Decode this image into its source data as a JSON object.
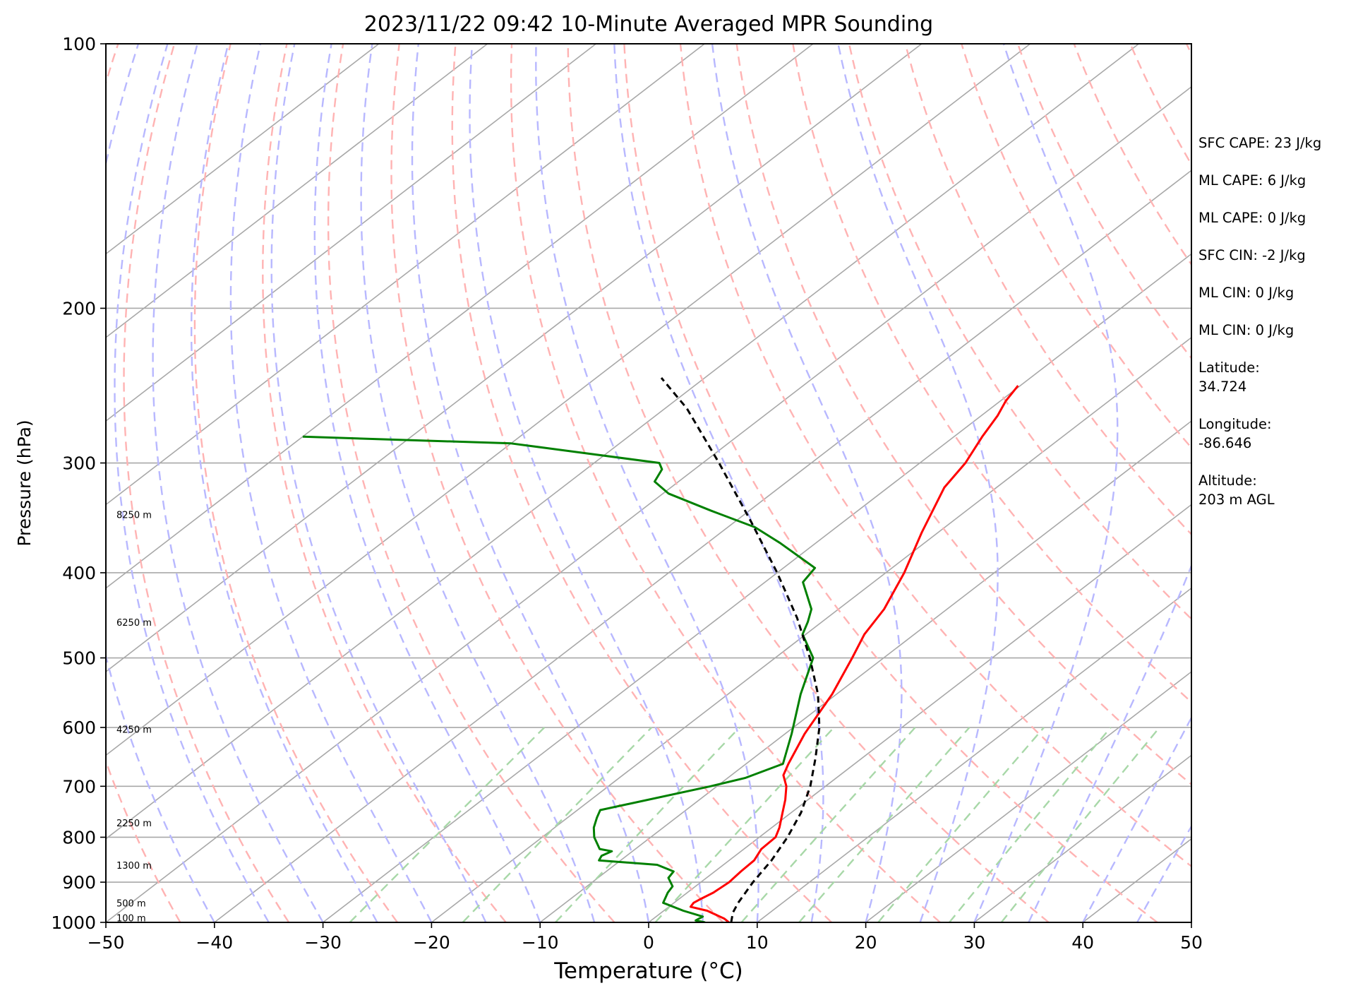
{
  "chart_data": {
    "type": "line",
    "title": "2023/11/22 09:42 10-Minute Averaged MPR Sounding",
    "xlabel": "Temperature (°C)",
    "ylabel": "Pressure (hPa)",
    "xlim": [
      -50,
      50
    ],
    "ylim": [
      1000,
      100
    ],
    "y_scale": "log",
    "skew": "skew-T log-P",
    "x_ticks": [
      "−50",
      "−40",
      "−30",
      "−20",
      "−10",
      "0",
      "10",
      "20",
      "30",
      "40",
      "50"
    ],
    "y_ticks": [
      "100",
      "200",
      "300",
      "400",
      "500",
      "600",
      "700",
      "800",
      "900",
      "1000"
    ],
    "grid": true,
    "series": [
      {
        "role": "temperature",
        "color": "#ff0000",
        "points": [
          [
            7.4,
            1000
          ],
          [
            6.5,
            990
          ],
          [
            4,
            970
          ],
          [
            2,
            960
          ],
          [
            1.8,
            950
          ],
          [
            2,
            940
          ],
          [
            2.4,
            925
          ],
          [
            2.6,
            900
          ],
          [
            2.4,
            875
          ],
          [
            2.3,
            850
          ],
          [
            1.6,
            825
          ],
          [
            1.5,
            800
          ],
          [
            0.7,
            780
          ],
          [
            -0.8,
            750
          ],
          [
            -2.1,
            725
          ],
          [
            -3.6,
            700
          ],
          [
            -5.2,
            680
          ],
          [
            -6.1,
            660
          ],
          [
            -8.2,
            610
          ],
          [
            -10.4,
            550
          ],
          [
            -12.9,
            500
          ],
          [
            -14.6,
            470
          ],
          [
            -15.8,
            440
          ],
          [
            -18.3,
            400
          ],
          [
            -21.5,
            360
          ],
          [
            -24.8,
            320
          ],
          [
            -25.8,
            300
          ],
          [
            -27.4,
            280
          ],
          [
            -28.5,
            265
          ],
          [
            -29.5,
            255
          ],
          [
            -30.2,
            245
          ]
        ]
      },
      {
        "role": "dewpoint",
        "color": "#008000",
        "points": [
          [
            5.2,
            1000
          ],
          [
            4.1,
            995
          ],
          [
            4.3,
            985
          ],
          [
            1.8,
            970
          ],
          [
            -1,
            950
          ],
          [
            -1.8,
            925
          ],
          [
            -2.1,
            910
          ],
          [
            -3.5,
            890
          ],
          [
            -3.8,
            875
          ],
          [
            -6.1,
            860
          ],
          [
            -12,
            850
          ],
          [
            -12.3,
            840
          ],
          [
            -11.9,
            830
          ],
          [
            -13.3,
            825
          ],
          [
            -15.2,
            800
          ],
          [
            -16.4,
            780
          ],
          [
            -17.3,
            760
          ],
          [
            -17.9,
            745
          ],
          [
            -10.6,
            700
          ],
          [
            -8.4,
            685
          ],
          [
            -6.6,
            660
          ],
          [
            -9.4,
            610
          ],
          [
            -13.3,
            550
          ],
          [
            -16.5,
            500
          ],
          [
            -20.3,
            470
          ],
          [
            -21.3,
            455
          ],
          [
            -22.5,
            440
          ],
          [
            -26.5,
            410
          ],
          [
            -27.1,
            395
          ],
          [
            -33.3,
            370
          ],
          [
            -37.5,
            355
          ],
          [
            -43.5,
            340
          ],
          [
            -49.5,
            325
          ],
          [
            -52.2,
            315
          ],
          [
            -53,
            305
          ],
          [
            -54,
            300
          ],
          [
            -70,
            285
          ],
          [
            -90,
            280
          ]
        ]
      },
      {
        "role": "parcel",
        "color": "#000000",
        "dash": "dashed",
        "points": [
          [
            7.6,
            1000
          ],
          [
            6.6,
            975
          ],
          [
            5.9,
            950
          ],
          [
            4.8,
            900
          ],
          [
            3.9,
            850
          ],
          [
            2.6,
            800
          ],
          [
            0.9,
            750
          ],
          [
            -1.4,
            700
          ],
          [
            -4.3,
            650
          ],
          [
            -7.6,
            600
          ],
          [
            -11.7,
            550
          ],
          [
            -16.8,
            500
          ],
          [
            -22.8,
            450
          ],
          [
            -30,
            400
          ],
          [
            -38.5,
            350
          ],
          [
            -48.5,
            300
          ],
          [
            -58,
            260
          ],
          [
            -64,
            240
          ]
        ]
      }
    ],
    "dry_adiabats_theta_K": [
      230,
      240,
      250,
      260,
      270,
      280,
      290,
      300,
      310,
      320,
      330,
      340,
      350,
      360,
      370,
      380,
      390,
      400,
      410,
      420,
      430,
      440,
      450
    ],
    "moist_adiabats_surface_C": [
      -40,
      -35,
      -30,
      -25,
      -20,
      -15,
      -10,
      -5,
      0,
      5,
      10,
      15,
      20,
      25,
      30,
      35,
      40,
      45,
      50
    ],
    "mixing_ratio_lines_gkg": [
      0.4,
      1,
      2,
      4,
      7,
      10,
      16,
      24,
      32
    ],
    "height_labels": [
      "100 m",
      "500 m",
      "1300 m",
      "2250 m",
      "4250 m",
      "6250 m",
      "8250 m"
    ],
    "height_label_pressures_hPa": [
      990,
      952,
      862,
      772,
      604,
      456,
      344
    ]
  },
  "stats": {
    "sfc_cape": "SFC CAPE: 23 J/kg",
    "ml_cape_1": "ML CAPE: 6 J/kg",
    "ml_cape_2": "ML CAPE: 0 J/kg",
    "sfc_cin": "SFC CIN: -2 J/kg",
    "ml_cin_1": "ML CIN: 0 J/kg",
    "ml_cin_2": "ML CIN: 0 J/kg",
    "lat_label": "Latitude:",
    "lat_value": "34.724",
    "lon_label": "Longitude:",
    "lon_value": "-86.646",
    "alt_label": "Altitude:",
    "alt_value": "203 m AGL"
  },
  "colors": {
    "temperature": "#ff0000",
    "dewpoint": "#008000",
    "parcel": "#000000",
    "isotherms": "#a8a8a8",
    "dry_adiabats": "#ffb3b3",
    "moist_adiabats": "#b8b8ff",
    "mixing_ratio": "#a8d8a8"
  }
}
